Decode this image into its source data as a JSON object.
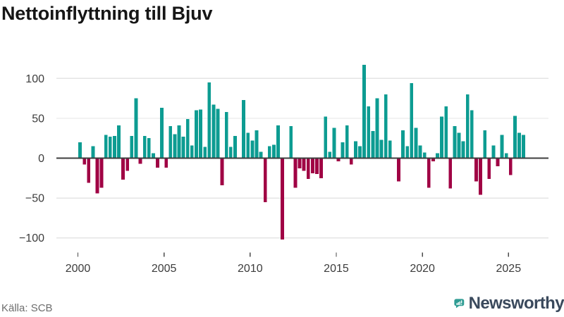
{
  "header": {
    "title": "Nettoinflyttning till Bjuv"
  },
  "footer": {
    "source": "Källa: SCB",
    "brand": "Newsworthy"
  },
  "colors": {
    "positive_bar": "#0d9c92",
    "negative_bar": "#a00244",
    "gridline": "#e4e4e4",
    "zero_line": "#3d3d3d",
    "axis_text": "#3c3c3c",
    "tick_mark": "#4a4a4a",
    "logo_teal": "#2f9c93",
    "logo_text": "#3a495c"
  },
  "chart_data": {
    "type": "bar",
    "title": "Nettoinflyttning till Bjuv",
    "frequency": "quarterly",
    "start_year": 2000,
    "x_tick_labels": [
      "2000",
      "2005",
      "2010",
      "2015",
      "2020",
      "2025"
    ],
    "y_ticks": [
      100,
      50,
      0,
      -50,
      -100
    ],
    "ylim": [
      -110,
      125
    ],
    "grid": true,
    "legend": false,
    "values": [
      20,
      -8,
      -31,
      15,
      -44,
      -37,
      29,
      27,
      28,
      41,
      -27,
      -16,
      28,
      75,
      -7,
      28,
      25,
      6,
      -12,
      63,
      -12,
      40,
      30,
      41,
      27,
      49,
      16,
      60,
      61,
      14,
      95,
      67,
      62,
      -34,
      58,
      14,
      28,
      0,
      73,
      32,
      22,
      35,
      8,
      -55,
      15,
      17,
      41,
      -102,
      0,
      40,
      -37,
      -13,
      -16,
      -26,
      -19,
      -20,
      -25,
      52,
      8,
      38,
      -4,
      20,
      41,
      -8,
      21,
      15,
      117,
      65,
      34,
      75,
      23,
      80,
      22,
      0,
      -29,
      35,
      15,
      94,
      38,
      16,
      7,
      -37,
      -4,
      6,
      52,
      65,
      -38,
      40,
      32,
      21,
      80,
      60,
      -29,
      -46,
      35,
      -26,
      16,
      -10,
      29,
      6,
      -21,
      53,
      32,
      29
    ]
  }
}
